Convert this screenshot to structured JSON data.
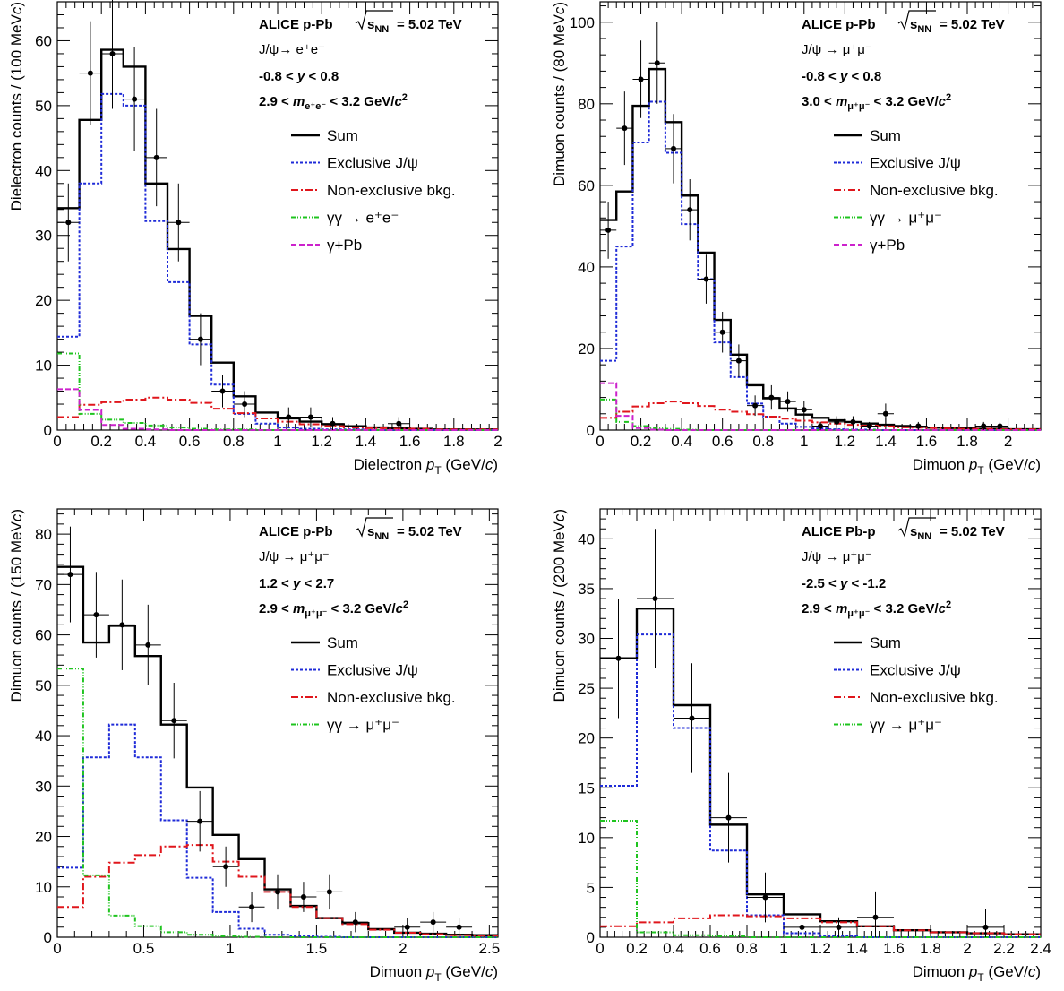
{
  "colors": {
    "sum": "#000000",
    "exclusive": "#1f2bd8",
    "nonexclusive": "#e0161c",
    "gg": "#1fc41f",
    "gpb": "#cc22cc",
    "data": "#000000"
  },
  "legend_labels": {
    "sum": "Sum",
    "exclusive": "Exclusive J/ψ",
    "nonexclusive": "Non-exclusive bkg.",
    "gpb": "γ+Pb"
  },
  "chart_data": [
    {
      "type": "histogram",
      "system": "ALICE p-Pb",
      "energy_text": "= 5.02 TeV",
      "decay": "J/ψ→ e⁺e⁻",
      "gg_label": "γγ  → e⁺e⁻",
      "rapidity": "-0.8 < y < 0.8",
      "mass_range": "2.9 < m e⁺e⁻ < 3.2 GeV/c²",
      "xlabel": "Dielectron p_T (GeV/c)",
      "ylabel": "Dielectron counts / (100 MeV/c)",
      "xlim": [
        0,
        2
      ],
      "ylim": [
        0,
        66
      ],
      "xticks": [
        0,
        0.2,
        0.4,
        0.6,
        0.8,
        1,
        1.2,
        1.4,
        1.6,
        1.8,
        2
      ],
      "xtick_labels": [
        "0",
        "0.2",
        "0.4",
        "0.6",
        "0.8",
        "1",
        "1.2",
        "1.4",
        "1.6",
        "1.8",
        "2"
      ],
      "yticks": [
        0,
        10,
        20,
        30,
        40,
        50,
        60
      ],
      "ytick_labels": [
        "0",
        "10",
        "20",
        "30",
        "40",
        "50",
        "60"
      ],
      "bin_edges": [
        0,
        0.1,
        0.2,
        0.3,
        0.4,
        0.5,
        0.6,
        0.7,
        0.8,
        0.9,
        1.0,
        1.1,
        1.2,
        1.3,
        1.4,
        1.5,
        1.6,
        1.7,
        1.8,
        1.9,
        2.0
      ],
      "series": [
        {
          "name": "Sum",
          "key": "sum",
          "values": [
            34.2,
            47.8,
            58.6,
            56.0,
            38.0,
            27.9,
            17.6,
            10.4,
            5.2,
            2.7,
            1.8,
            1.3,
            0.9,
            0.6,
            0.4,
            0.3,
            0.2,
            0.1,
            0.1,
            0.1
          ]
        },
        {
          "name": "Exclusive J/ψ",
          "key": "exclusive",
          "values": [
            14.4,
            38.0,
            51.8,
            50.0,
            32.2,
            22.8,
            13.2,
            7.0,
            2.5,
            1.0,
            0.4,
            0.2,
            0.1,
            0.1,
            0,
            0,
            0,
            0,
            0,
            0
          ]
        },
        {
          "name": "Non-exclusive bkg.",
          "key": "nonexclusive",
          "values": [
            2.0,
            3.9,
            4.3,
            4.7,
            5.0,
            4.7,
            4.2,
            3.3,
            2.6,
            1.8,
            1.3,
            0.9,
            0.6,
            0.4,
            0.3,
            0.2,
            0.2,
            0.1,
            0.1,
            0.1
          ]
        },
        {
          "name": "γγ  → e⁺e⁻",
          "key": "gg",
          "values": [
            11.8,
            2.5,
            1.6,
            1.1,
            0.7,
            0.4,
            0.2,
            0.1,
            0.1,
            0,
            0,
            0,
            0,
            0,
            0,
            0,
            0,
            0,
            0,
            0
          ]
        },
        {
          "name": "γ+Pb",
          "key": "gpb",
          "values": [
            6.3,
            3.1,
            0.8,
            0.2,
            0.1,
            0,
            0,
            0,
            0,
            0,
            0,
            0,
            0,
            0,
            0,
            0,
            0,
            0,
            0,
            0
          ]
        }
      ],
      "points": [
        {
          "x": 0.05,
          "y": 32,
          "err": 6
        },
        {
          "x": 0.15,
          "y": 55,
          "err": 8
        },
        {
          "x": 0.25,
          "y": 58,
          "err": 8.5
        },
        {
          "x": 0.35,
          "y": 51,
          "err": 8
        },
        {
          "x": 0.45,
          "y": 42,
          "err": 7.5
        },
        {
          "x": 0.55,
          "y": 32,
          "err": 6
        },
        {
          "x": 0.65,
          "y": 14,
          "err": 4
        },
        {
          "x": 0.75,
          "y": 6,
          "err": 2.5
        },
        {
          "x": 0.85,
          "y": 4,
          "err": 2
        },
        {
          "x": 1.05,
          "y": 2,
          "err": 1.5
        },
        {
          "x": 1.15,
          "y": 2,
          "err": 1.5
        },
        {
          "x": 1.25,
          "y": 1,
          "err": 1
        },
        {
          "x": 1.55,
          "y": 1,
          "err": 1
        }
      ]
    },
    {
      "type": "histogram",
      "system": "ALICE p-Pb",
      "energy_text": "= 5.02 TeV",
      "decay": "J/ψ → μ⁺μ⁻",
      "gg_label": "γγ  → μ⁺μ⁻",
      "rapidity": "-0.8 < y < 0.8",
      "mass_range": "3.0 < m μ⁺μ⁻ < 3.2 GeV/c²",
      "xlabel": "Dimuon p_T (GeV/c)",
      "ylabel": "Dimuon counts / (80 MeV/c)",
      "xlim": [
        0,
        2.16
      ],
      "ylim": [
        0,
        105
      ],
      "xticks": [
        0,
        0.2,
        0.4,
        0.6,
        0.8,
        1,
        1.2,
        1.4,
        1.6,
        1.8,
        2
      ],
      "xtick_labels": [
        "0",
        "0.2",
        "0.4",
        "0.6",
        "0.8",
        "1",
        "1.2",
        "1.4",
        "1.6",
        "1.8",
        "2"
      ],
      "yticks": [
        0,
        20,
        40,
        60,
        80,
        100
      ],
      "ytick_labels": [
        "0",
        "20",
        "40",
        "60",
        "80",
        "100"
      ],
      "bin_edges": [
        0,
        0.08,
        0.16,
        0.24,
        0.32,
        0.4,
        0.48,
        0.56,
        0.64,
        0.72,
        0.8,
        0.88,
        0.96,
        1.04,
        1.12,
        1.2,
        1.28,
        1.36,
        1.44,
        1.52,
        1.6,
        1.68,
        1.76,
        1.84,
        1.92,
        2.0,
        2.08,
        2.16
      ],
      "series": [
        {
          "name": "Sum",
          "key": "sum",
          "values": [
            51.5,
            58.5,
            79.5,
            88.5,
            75.5,
            57.5,
            43.5,
            27.0,
            18.5,
            11.0,
            7.8,
            5.3,
            3.8,
            3.0,
            2.4,
            2.0,
            1.6,
            1.3,
            1.0,
            0.8,
            0.6,
            0.5,
            0.4,
            0.3,
            0.3,
            0.2,
            0.2
          ]
        },
        {
          "name": "Exclusive J/ψ",
          "key": "exclusive",
          "values": [
            17.0,
            45.0,
            70.5,
            80.5,
            68.0,
            50.5,
            37.0,
            21.5,
            13.0,
            6.5,
            3.3,
            1.6,
            0.8,
            0.4,
            0.2,
            0.1,
            0.1,
            0,
            0,
            0,
            0,
            0,
            0,
            0,
            0,
            0,
            0
          ]
        },
        {
          "name": "Non-exclusive bkg.",
          "key": "nonexclusive",
          "values": [
            3.0,
            4.5,
            5.8,
            6.6,
            7.0,
            6.6,
            5.9,
            5.0,
            4.5,
            3.9,
            3.3,
            2.8,
            2.3,
            1.9,
            1.6,
            1.3,
            1.1,
            0.9,
            0.7,
            0.6,
            0.5,
            0.4,
            0.3,
            0.3,
            0.2,
            0.2,
            0.2
          ]
        },
        {
          "name": "γγ  → μ⁺μ⁻",
          "key": "gg",
          "values": [
            7.5,
            2.0,
            1.0,
            0.5,
            0.3,
            0.1,
            0,
            0,
            0,
            0,
            0,
            0,
            0,
            0,
            0,
            0,
            0,
            0,
            0,
            0,
            0,
            0,
            0,
            0,
            0,
            0,
            0
          ]
        },
        {
          "name": "γ+Pb",
          "key": "gpb",
          "values": [
            11.5,
            3.5,
            0.5,
            0.1,
            0,
            0,
            0,
            0,
            0,
            0,
            0,
            0,
            0,
            0,
            0,
            0,
            0,
            0,
            0,
            0,
            0,
            0,
            0,
            0,
            0,
            0,
            0
          ]
        }
      ],
      "points": [
        {
          "x": 0.04,
          "y": 49,
          "err": 7
        },
        {
          "x": 0.12,
          "y": 74,
          "err": 9
        },
        {
          "x": 0.2,
          "y": 86,
          "err": 9.5
        },
        {
          "x": 0.28,
          "y": 90,
          "err": 10
        },
        {
          "x": 0.36,
          "y": 69,
          "err": 8.5
        },
        {
          "x": 0.44,
          "y": 54,
          "err": 7.5
        },
        {
          "x": 0.52,
          "y": 37,
          "err": 6
        },
        {
          "x": 0.6,
          "y": 24,
          "err": 5
        },
        {
          "x": 0.68,
          "y": 17,
          "err": 4
        },
        {
          "x": 0.76,
          "y": 6,
          "err": 2.5
        },
        {
          "x": 0.84,
          "y": 8,
          "err": 3
        },
        {
          "x": 0.92,
          "y": 7,
          "err": 2.5
        },
        {
          "x": 1.0,
          "y": 5,
          "err": 2.2
        },
        {
          "x": 1.08,
          "y": 1,
          "err": 1
        },
        {
          "x": 1.16,
          "y": 2,
          "err": 1.4
        },
        {
          "x": 1.24,
          "y": 2,
          "err": 1.4
        },
        {
          "x": 1.32,
          "y": 1,
          "err": 1
        },
        {
          "x": 1.4,
          "y": 4,
          "err": 2.5
        },
        {
          "x": 1.56,
          "y": 1,
          "err": 1
        },
        {
          "x": 1.88,
          "y": 1,
          "err": 1
        },
        {
          "x": 1.96,
          "y": 1,
          "err": 1
        }
      ]
    },
    {
      "type": "histogram",
      "system": "ALICE p-Pb",
      "energy_text": "= 5.02 TeV",
      "decay": "J/ψ → μ⁺μ⁻",
      "gg_label": "γγ  → μ⁺μ⁻",
      "rapidity": "1.2 < y < 2.7",
      "mass_range": "2.9 < m μ⁺μ⁻ < 3.2 GeV/c²",
      "xlabel": "Dimuon p_T (GeV/c)",
      "ylabel": "Dimuon counts / (150 MeV/c)",
      "xlim": [
        0,
        2.55
      ],
      "ylim": [
        0,
        85
      ],
      "xticks": [
        0,
        0.5,
        1,
        1.5,
        2,
        2.5
      ],
      "xtick_labels": [
        "0",
        "0.5",
        "1",
        "1.5",
        "2",
        "2.5"
      ],
      "yticks": [
        0,
        10,
        20,
        30,
        40,
        50,
        60,
        70,
        80
      ],
      "ytick_labels": [
        "0",
        "10",
        "20",
        "30",
        "40",
        "50",
        "60",
        "70",
        "80"
      ],
      "bin_edges": [
        0,
        0.15,
        0.3,
        0.45,
        0.6,
        0.75,
        0.9,
        1.05,
        1.2,
        1.35,
        1.5,
        1.65,
        1.8,
        1.95,
        2.1,
        2.25,
        2.4,
        2.55
      ],
      "series": [
        {
          "name": "Sum",
          "key": "sum",
          "values": [
            73.5,
            58.5,
            61.8,
            55.8,
            42.2,
            29.7,
            20.3,
            15.5,
            9.5,
            6.2,
            3.8,
            2.8,
            1.6,
            0.9,
            0.7,
            0.5,
            0.4
          ]
        },
        {
          "name": "Exclusive J/ψ",
          "key": "exclusive",
          "values": [
            13.8,
            35.7,
            42.2,
            35.7,
            23.2,
            11.8,
            5.0,
            1.7,
            0.5,
            0.2,
            0.1,
            0,
            0,
            0,
            0,
            0,
            0
          ]
        },
        {
          "name": "Non-exclusive bkg.",
          "key": "nonexclusive",
          "values": [
            6.0,
            12.0,
            14.8,
            16.3,
            18.0,
            18.3,
            15.0,
            12.0,
            9.0,
            6.0,
            3.8,
            2.6,
            1.5,
            0.9,
            0.6,
            0.4,
            0.3
          ]
        },
        {
          "name": "γγ  → μ⁺μ⁻",
          "key": "gg",
          "values": [
            53.3,
            12.3,
            4.3,
            2.2,
            1.0,
            0.5,
            0.2,
            0.1,
            0,
            0,
            0,
            0,
            0,
            0,
            0,
            0,
            0
          ]
        }
      ],
      "points": [
        {
          "x": 0.075,
          "y": 72,
          "err": 9.5
        },
        {
          "x": 0.225,
          "y": 64,
          "err": 8.5
        },
        {
          "x": 0.375,
          "y": 62,
          "err": 9
        },
        {
          "x": 0.525,
          "y": 58,
          "err": 8
        },
        {
          "x": 0.675,
          "y": 43,
          "err": 7.5
        },
        {
          "x": 0.825,
          "y": 23,
          "err": 6
        },
        {
          "x": 0.975,
          "y": 14,
          "err": 4
        },
        {
          "x": 1.125,
          "y": 6,
          "err": 3
        },
        {
          "x": 1.275,
          "y": 9,
          "err": 3.5
        },
        {
          "x": 1.425,
          "y": 8,
          "err": 3
        },
        {
          "x": 1.575,
          "y": 9,
          "err": 3.5
        },
        {
          "x": 1.725,
          "y": 3,
          "err": 2
        },
        {
          "x": 2.025,
          "y": 2,
          "err": 1.8
        },
        {
          "x": 2.175,
          "y": 3,
          "err": 2
        },
        {
          "x": 2.325,
          "y": 2,
          "err": 1.8
        }
      ]
    },
    {
      "type": "histogram",
      "system": "ALICE Pb-p",
      "energy_text": "= 5.02 TeV",
      "decay": "J/ψ → μ⁺μ⁻",
      "gg_label": "γγ  → μ⁺μ⁻",
      "rapidity": "-2.5 < y < -1.2",
      "mass_range": "2.9 < m μ⁺μ⁻ < 3.2 GeV/c²",
      "xlabel": "Dimuon p_T (GeV/c)",
      "ylabel": "Dimuon counts / (200 MeV/c)",
      "xlim": [
        0,
        2.4
      ],
      "ylim": [
        0,
        43
      ],
      "xticks": [
        0,
        0.2,
        0.4,
        0.6,
        0.8,
        1,
        1.2,
        1.4,
        1.6,
        1.8,
        2,
        2.2,
        2.4
      ],
      "xtick_labels": [
        "0",
        "0.2",
        "0.4",
        "0.6",
        "0.8",
        "1",
        "1.2",
        "1.4",
        "1.6",
        "1.8",
        "2",
        "2.2",
        "2.4"
      ],
      "yticks": [
        0,
        5,
        10,
        15,
        20,
        25,
        30,
        35,
        40
      ],
      "ytick_labels": [
        "0",
        "5",
        "10",
        "15",
        "20",
        "25",
        "30",
        "35",
        "40"
      ],
      "bin_edges": [
        0,
        0.2,
        0.4,
        0.6,
        0.8,
        1.0,
        1.2,
        1.4,
        1.6,
        1.8,
        2.0,
        2.2,
        2.4
      ],
      "series": [
        {
          "name": "Sum",
          "key": "sum",
          "values": [
            28.0,
            33.0,
            23.3,
            11.3,
            4.3,
            2.3,
            1.6,
            1.1,
            0.7,
            0.5,
            0.4,
            0.3
          ]
        },
        {
          "name": "Exclusive J/ψ",
          "key": "exclusive",
          "values": [
            15.2,
            30.4,
            21.0,
            8.7,
            2.2,
            0.4,
            0.1,
            0,
            0,
            0,
            0,
            0
          ]
        },
        {
          "name": "Non-exclusive bkg.",
          "key": "nonexclusive",
          "values": [
            1.1,
            1.5,
            1.9,
            2.2,
            2.1,
            1.9,
            1.5,
            1.1,
            0.7,
            0.5,
            0.4,
            0.3
          ]
        },
        {
          "name": "γγ  → μ⁺μ⁻",
          "key": "gg",
          "values": [
            11.7,
            0.5,
            0.2,
            0.1,
            0,
            0,
            0,
            0,
            0,
            0,
            0,
            0
          ]
        }
      ],
      "points": [
        {
          "x": 0.1,
          "y": 28,
          "err": 6
        },
        {
          "x": 0.3,
          "y": 34,
          "err": 7
        },
        {
          "x": 0.5,
          "y": 22,
          "err": 5.5
        },
        {
          "x": 0.7,
          "y": 12,
          "err": 4.5
        },
        {
          "x": 0.9,
          "y": 4,
          "err": 2.5
        },
        {
          "x": 1.1,
          "y": 1,
          "err": 1
        },
        {
          "x": 1.3,
          "y": 1,
          "err": 1
        },
        {
          "x": 1.5,
          "y": 2,
          "err": 2.6
        },
        {
          "x": 2.1,
          "y": 1,
          "err": 1.8
        }
      ]
    }
  ]
}
